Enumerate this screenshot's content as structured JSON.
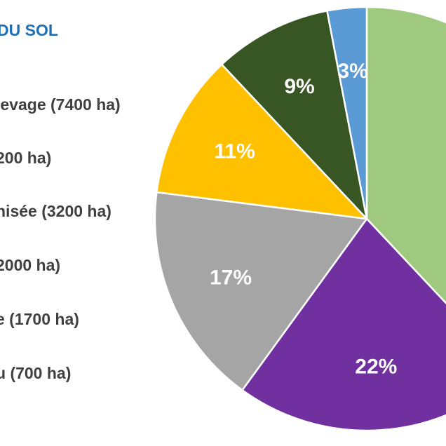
{
  "chart_data": {
    "type": "pie",
    "title": "DU SOL",
    "legend_position": "left",
    "slices": [
      {
        "label": "levage (7400 ha)",
        "percent": 38,
        "color": "#9ec97f",
        "value_label": ""
      },
      {
        "label": "200 ha)",
        "percent": 22,
        "color": "#7030a0",
        "value_label": "22%"
      },
      {
        "label": "nisée (3200 ha)",
        "percent": 17,
        "color": "#a5a5a5",
        "value_label": "17%"
      },
      {
        "label": "2000 ha)",
        "percent": 11,
        "color": "#ffc000",
        "value_label": "11%"
      },
      {
        "label": "e (1700 ha)",
        "percent": 9,
        "color": "#375623",
        "value_label": "9%"
      },
      {
        "label": "u (700 ha)",
        "percent": 3,
        "color": "#5b9bd5",
        "value_label": "3%"
      }
    ]
  }
}
